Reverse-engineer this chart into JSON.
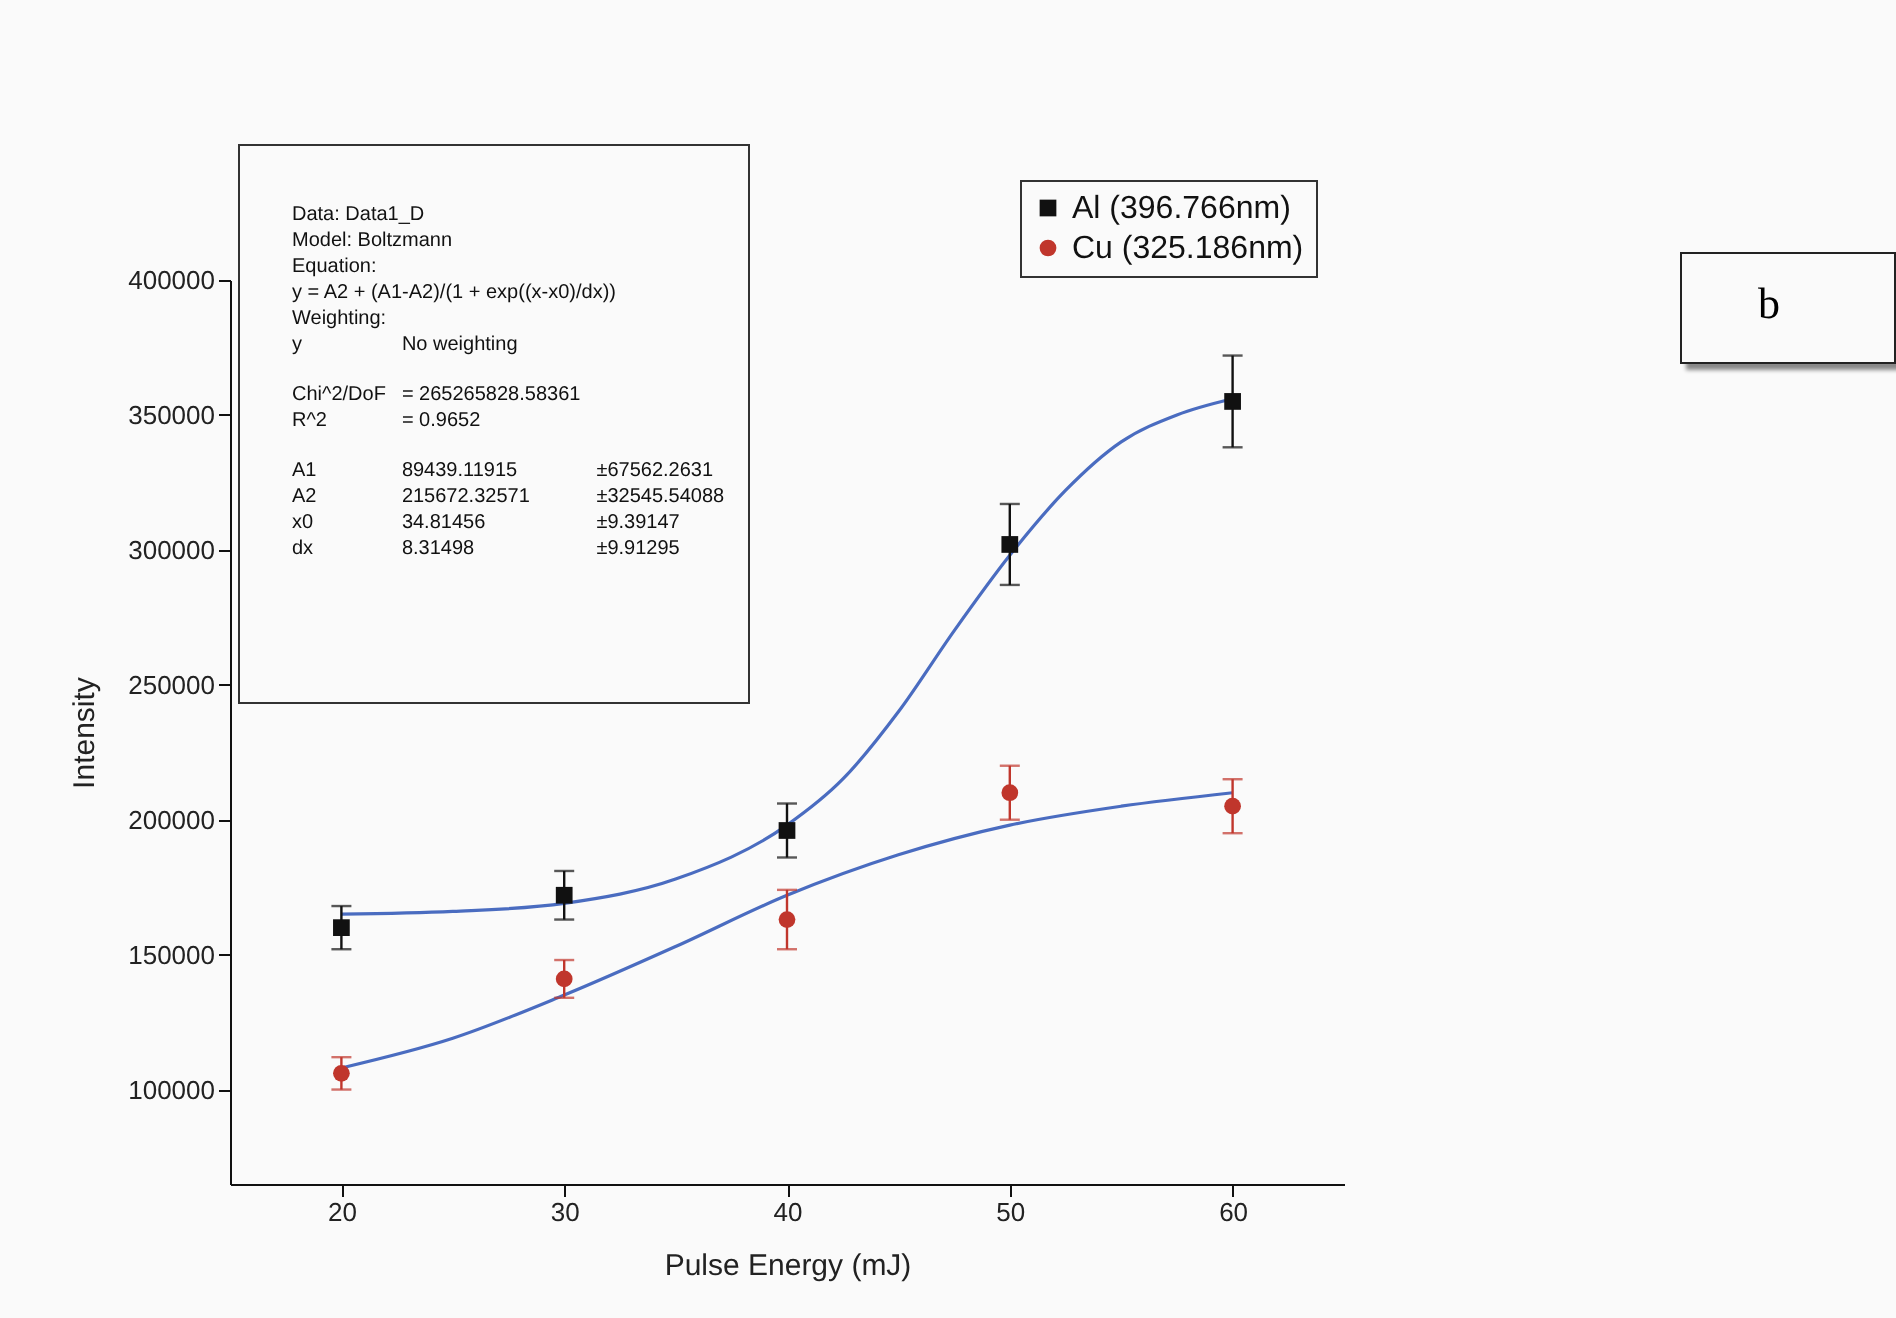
{
  "chart_data": {
    "type": "scatter",
    "xlabel": "Pulse Energy (mJ)",
    "ylabel": "Intensity",
    "xlim": [
      15,
      65
    ],
    "xticks": [
      20,
      30,
      40,
      50,
      60
    ],
    "ylim": [
      65000,
      400000
    ],
    "yticks": [
      100000,
      150000,
      200000,
      250000,
      300000,
      350000,
      400000
    ],
    "grid": false,
    "legend": "top right",
    "series": [
      {
        "name": "Al (396.766nm)",
        "type": "scatter",
        "marker": "square",
        "color": "#111111",
        "x": [
          20,
          30,
          40,
          50,
          60
        ],
        "values": [
          160000,
          172000,
          196000,
          302000,
          355000
        ],
        "errors": [
          8000,
          9000,
          10000,
          15000,
          17000
        ]
      },
      {
        "name": "Cu (325.186nm)",
        "type": "scatter",
        "marker": "circle",
        "color": "#c0362c",
        "x": [
          20,
          30,
          40,
          50,
          60
        ],
        "values": [
          106000,
          141000,
          163000,
          210000,
          205000
        ],
        "errors": [
          6000,
          7000,
          11000,
          10000,
          10000
        ]
      },
      {
        "type": "line",
        "color": "#4a6cc0",
        "x": [
          20,
          25,
          30,
          35,
          40,
          42.5,
          45,
          47.5,
          50,
          52.5,
          55,
          57.5,
          60
        ],
        "values": [
          165000,
          166000,
          169000,
          178000,
          198000,
          215000,
          240000,
          270000,
          298000,
          322000,
          340000,
          350000,
          356000
        ]
      },
      {
        "type": "line",
        "color": "#4a6cc0",
        "x": [
          20,
          25,
          30,
          35,
          40,
          45,
          50,
          55,
          60
        ],
        "values": [
          108000,
          119000,
          135000,
          153000,
          172000,
          187000,
          198000,
          205000,
          210000
        ]
      }
    ],
    "annotations": [
      "Data: Data1_D",
      "Model: Boltzmann",
      "Equation:",
      "y = A2 + (A1-A2)/(1 + exp((x-x0)/dx))",
      "Weighting:",
      "y\tNo weighting",
      "Chi^2/DoF\t= 265265828.58361",
      "R^2\t= 0.9652",
      "A1\t89439.11915\t±67562.2631",
      "A2\t215672.32571\t±32545.54088",
      "x0\t34.81456\t±9.39147",
      "dx\t8.31498\t±9.91295",
      "b"
    ]
  }
}
